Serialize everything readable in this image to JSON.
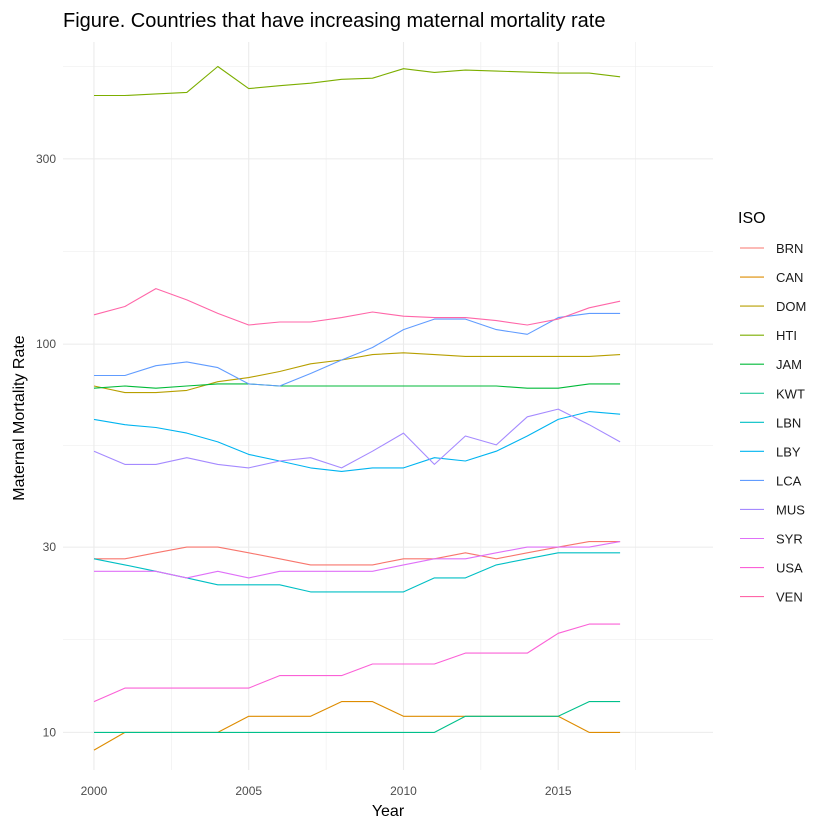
{
  "chart_data": {
    "type": "line",
    "title": "Figure. Countries that have increasing maternal mortality rate",
    "xlabel": "Year",
    "ylabel": "Maternal Mortality Rate",
    "y_scale": "log10",
    "xlim": [
      1999,
      2020
    ],
    "ylim": [
      8,
      600
    ],
    "x_ticks": [
      2000,
      2005,
      2010,
      2015
    ],
    "y_ticks": [
      10,
      30,
      100,
      300
    ],
    "grid": true,
    "legend_title": "ISO",
    "legend_position": "right",
    "x": [
      2000,
      2001,
      2002,
      2003,
      2004,
      2005,
      2006,
      2007,
      2008,
      2009,
      2010,
      2011,
      2012,
      2013,
      2014,
      2015,
      2016,
      2017
    ],
    "series": [
      {
        "name": "BRN",
        "color": "#F8766D",
        "values": [
          28,
          28,
          29,
          30,
          30,
          29,
          28,
          27,
          27,
          27,
          28,
          28,
          29,
          28,
          29,
          30,
          31,
          31
        ]
      },
      {
        "name": "CAN",
        "color": "#DE8C00",
        "values": [
          9,
          10,
          10,
          10,
          10,
          11,
          11,
          11,
          12,
          12,
          11,
          11,
          11,
          11,
          11,
          11,
          10,
          10
        ]
      },
      {
        "name": "DOM",
        "color": "#B79F00",
        "values": [
          78,
          75,
          75,
          76,
          80,
          82,
          85,
          89,
          91,
          94,
          95,
          94,
          93,
          93,
          93,
          93,
          93,
          94
        ]
      },
      {
        "name": "HTI",
        "color": "#7CAE00",
        "values": [
          437,
          437,
          441,
          445,
          519,
          455,
          463,
          470,
          481,
          484,
          512,
          501,
          508,
          505,
          502,
          499,
          499,
          488
        ]
      },
      {
        "name": "JAM",
        "color": "#00BA38",
        "values": [
          77,
          78,
          77,
          78,
          79,
          79,
          78,
          78,
          78,
          78,
          78,
          78,
          78,
          78,
          77,
          77,
          79,
          79
        ]
      },
      {
        "name": "KWT",
        "color": "#00C08B",
        "values": [
          10,
          10,
          10,
          10,
          10,
          10,
          10,
          10,
          10,
          10,
          10,
          10,
          11,
          11,
          11,
          11,
          12,
          12
        ]
      },
      {
        "name": "LBN",
        "color": "#00BFC4",
        "values": [
          28,
          27,
          26,
          25,
          24,
          24,
          24,
          23,
          23,
          23,
          23,
          25,
          25,
          27,
          28,
          29,
          29,
          29
        ]
      },
      {
        "name": "LBY",
        "color": "#00B4F0",
        "values": [
          64,
          62,
          61,
          59,
          56,
          52,
          50,
          48,
          47,
          48,
          48,
          51,
          50,
          53,
          58,
          64,
          67,
          66
        ]
      },
      {
        "name": "LCA",
        "color": "#619CFF",
        "values": [
          83,
          83,
          88,
          90,
          87,
          79,
          78,
          84,
          91,
          98,
          109,
          116,
          116,
          109,
          106,
          117,
          120,
          120
        ]
      },
      {
        "name": "MUS",
        "color": "#A58AFF",
        "values": [
          53,
          49,
          49,
          51,
          49,
          48,
          50,
          51,
          48,
          53,
          59,
          49,
          58,
          55,
          65,
          68,
          62,
          56
        ]
      },
      {
        "name": "SYR",
        "color": "#DF70F8",
        "values": [
          26,
          26,
          26,
          25,
          26,
          25,
          26,
          26,
          26,
          26,
          27,
          28,
          28,
          29,
          30,
          30,
          30,
          31
        ]
      },
      {
        "name": "USA",
        "color": "#FB61D7",
        "values": [
          12,
          13,
          13,
          13,
          13,
          13,
          14,
          14,
          14,
          15,
          15,
          15,
          16,
          16,
          16,
          18,
          19,
          19
        ]
      },
      {
        "name": "VEN",
        "color": "#FF66A8",
        "values": [
          119,
          125,
          139,
          130,
          120,
          112,
          114,
          114,
          117,
          121,
          118,
          117,
          117,
          115,
          112,
          116,
          124,
          129
        ]
      }
    ]
  }
}
